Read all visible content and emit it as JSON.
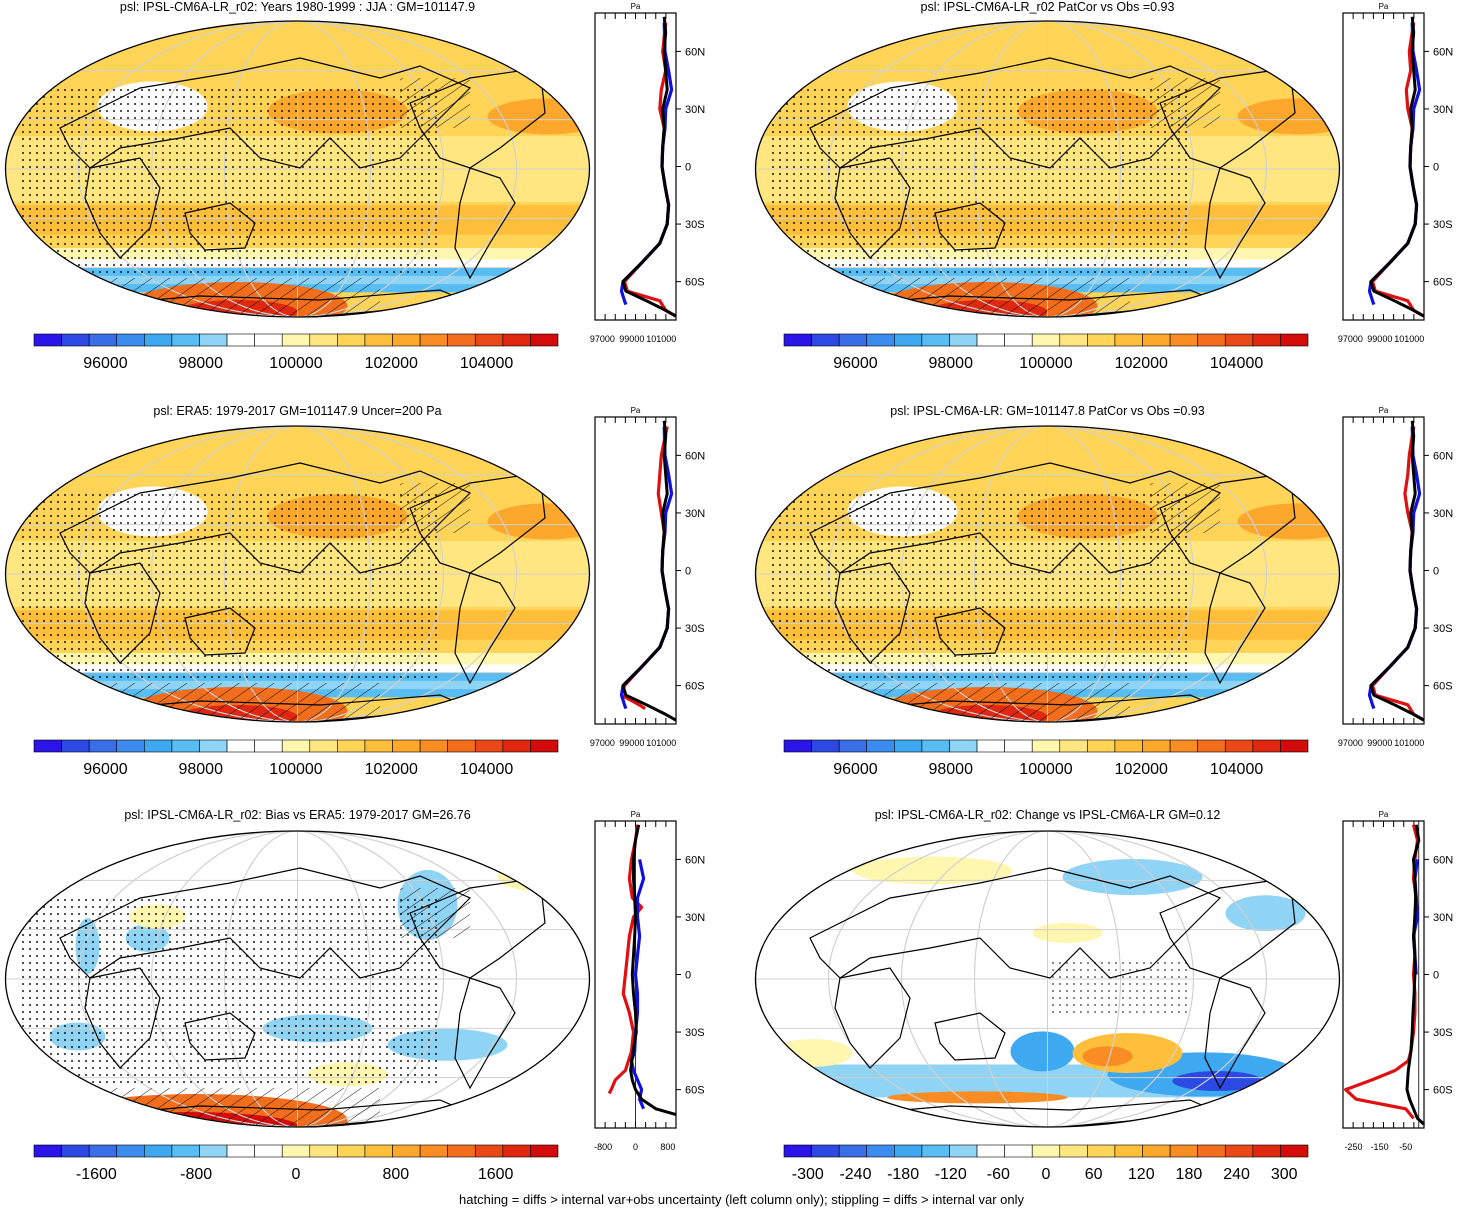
{
  "figure": {
    "variable": "psl",
    "footer": "hatching = diffs > internal var+obs uncertainty (left column only); stippling = diffs > internal var only"
  },
  "colors": {
    "scale": [
      "#2a14e8",
      "#2d49e3",
      "#3a6ee6",
      "#3c8cef",
      "#3ea8f0",
      "#58bdf3",
      "#8fd3f5",
      "#ffffff",
      "#ffffff",
      "#fff6b0",
      "#ffe680",
      "#ffd457",
      "#ffbf3a",
      "#fda72d",
      "#f98d23",
      "#f26e1c",
      "#e84916",
      "#e02810",
      "#d40b0b"
    ],
    "model_line": "#e01010",
    "obs_line": "#1010e0",
    "mean_line": "#000000",
    "coast": "#000000",
    "grid": "#d0d0d0"
  },
  "chart_data": [
    {
      "type": "heatmap",
      "id": "panel-model-r02",
      "title": "psl: IPSL-CM6A-LR_r02: Years 1980-1999 : JJA : GM=101147.9",
      "colorbar_ticks": [
        "96000",
        "98000",
        "100000",
        "102000",
        "104000"
      ],
      "colorbar_range": [
        94500,
        105500
      ],
      "profile": {
        "units": "Pa",
        "x_ticks": [
          "97000",
          "99000",
          "101000"
        ],
        "x_range": [
          96500,
          102000
        ],
        "lat_ticks": [
          "60N",
          "30N",
          "0",
          "30S",
          "60S"
        ],
        "series": [
          {
            "name": "model",
            "lat": [
              75,
              60,
              50,
              40,
              30,
              20,
              10,
              0,
              -10,
              -20,
              -30,
              -40,
              -50,
              -60,
              -65,
              -70,
              -75,
              -78
            ],
            "values": [
              101300,
              101100,
              101300,
              101000,
              100900,
              101200,
              101100,
              101050,
              101250,
              101500,
              101400,
              100900,
              99700,
              98500,
              98700,
              100900,
              101300,
              102000
            ]
          },
          {
            "name": "obs",
            "lat": [
              75,
              60,
              50,
              40,
              30,
              20,
              10,
              0,
              -10,
              -20,
              -30,
              -40,
              -50,
              -60,
              -65,
              -70,
              -72
            ],
            "values": [
              101200,
              101250,
              101500,
              101700,
              101300,
              101250,
              101100,
              101050,
              101250,
              101500,
              101400,
              100900,
              99700,
              98400,
              98300,
              98500,
              98600
            ]
          },
          {
            "name": "mean",
            "lat": [
              78,
              70,
              60,
              50,
              40,
              30,
              20,
              10,
              0,
              -10,
              -20,
              -30,
              -40,
              -50,
              -60,
              -65,
              -70,
              -75,
              -78
            ],
            "values": [
              101200,
              101300,
              101200,
              101300,
              101400,
              101100,
              101200,
              101100,
              101050,
              101250,
              101500,
              101400,
              100900,
              99700,
              98400,
              98600,
              100000,
              101300,
              102000
            ]
          }
        ]
      }
    },
    {
      "type": "heatmap",
      "id": "panel-model-patcor",
      "title": "psl: IPSL-CM6A-LR_r02 PatCor vs Obs =0.93",
      "colorbar_ticks": [
        "96000",
        "98000",
        "100000",
        "102000",
        "104000"
      ],
      "colorbar_range": [
        94500,
        105500
      ],
      "profile": {
        "units": "Pa",
        "x_ticks": [
          "97000",
          "99000",
          "101000"
        ],
        "x_range": [
          96500,
          102000
        ],
        "lat_ticks": [
          "60N",
          "30N",
          "0",
          "30S",
          "60S"
        ],
        "series": [
          {
            "name": "model",
            "lat": [
              75,
              60,
              50,
              40,
              30,
              20,
              10,
              0,
              -10,
              -20,
              -30,
              -40,
              -50,
              -60,
              -65,
              -70,
              -75,
              -78
            ],
            "values": [
              101300,
              101000,
              101100,
              100800,
              100900,
              101200,
              101100,
              101050,
              101250,
              101500,
              101400,
              100900,
              99700,
              98500,
              98700,
              100900,
              101300,
              102000
            ]
          },
          {
            "name": "obs",
            "lat": [
              75,
              60,
              50,
              40,
              30,
              20,
              10,
              0,
              -10,
              -20,
              -30,
              -40,
              -50,
              -60,
              -65,
              -70,
              -72
            ],
            "values": [
              101200,
              101250,
              101500,
              101700,
              101300,
              101250,
              101100,
              101050,
              101250,
              101500,
              101400,
              100900,
              99700,
              98400,
              98300,
              98500,
              98600
            ]
          },
          {
            "name": "mean",
            "lat": [
              78,
              70,
              60,
              50,
              40,
              30,
              20,
              10,
              0,
              -10,
              -20,
              -30,
              -40,
              -50,
              -60,
              -65,
              -70,
              -75,
              -78
            ],
            "values": [
              101200,
              101300,
              101200,
              101300,
              101400,
              101100,
              101200,
              101100,
              101050,
              101250,
              101500,
              101400,
              100900,
              99700,
              98400,
              98600,
              100000,
              101300,
              102000
            ]
          }
        ]
      }
    },
    {
      "type": "heatmap",
      "id": "panel-era5",
      "title": "psl: ERA5: 1979-2017 GM=101147.9 Uncer=200 Pa",
      "colorbar_ticks": [
        "96000",
        "98000",
        "100000",
        "102000",
        "104000"
      ],
      "colorbar_range": [
        94500,
        105500
      ],
      "profile": {
        "units": "Pa",
        "x_ticks": [
          "97000",
          "99000",
          "101000"
        ],
        "x_range": [
          96500,
          102000
        ],
        "lat_ticks": [
          "60N",
          "30N",
          "0",
          "30S",
          "60S"
        ],
        "series": [
          {
            "name": "model",
            "lat": [
              75,
              60,
              50,
              40,
              30,
              20,
              10,
              0,
              -10,
              -20,
              -30,
              -40,
              -50,
              -60,
              -65,
              -70,
              -72
            ],
            "values": [
              101400,
              101000,
              100900,
              100800,
              101000,
              101200,
              101100,
              101050,
              101250,
              101500,
              101400,
              100900,
              99700,
              98500,
              98300,
              99500,
              99900
            ]
          },
          {
            "name": "obs",
            "lat": [
              75,
              60,
              50,
              40,
              30,
              20,
              10,
              0,
              -10,
              -20,
              -30,
              -40,
              -50,
              -60,
              -65,
              -70,
              -72
            ],
            "values": [
              101200,
              101250,
              101500,
              101700,
              101300,
              101250,
              101100,
              101050,
              101250,
              101500,
              101400,
              100900,
              99700,
              98400,
              98300,
              98500,
              98600
            ]
          },
          {
            "name": "mean",
            "lat": [
              78,
              70,
              60,
              50,
              40,
              30,
              20,
              10,
              0,
              -10,
              -20,
              -30,
              -40,
              -50,
              -60,
              -65,
              -70,
              -75,
              -78
            ],
            "values": [
              101200,
              101300,
              101200,
              101300,
              101400,
              101100,
              101200,
              101100,
              101050,
              101250,
              101500,
              101400,
              100900,
              99700,
              98400,
              98600,
              100000,
              101300,
              102000
            ]
          }
        ]
      }
    },
    {
      "type": "heatmap",
      "id": "panel-model-gm",
      "title": "psl: IPSL-CM6A-LR: GM=101147.8 PatCor vs Obs =0.93",
      "colorbar_ticks": [
        "96000",
        "98000",
        "100000",
        "102000",
        "104000"
      ],
      "colorbar_range": [
        94500,
        105500
      ],
      "profile": {
        "units": "Pa",
        "x_ticks": [
          "97000",
          "99000",
          "101000"
        ],
        "x_range": [
          96500,
          102000
        ],
        "lat_ticks": [
          "60N",
          "30N",
          "0",
          "30S",
          "60S"
        ],
        "series": [
          {
            "name": "model",
            "lat": [
              75,
              60,
              50,
              40,
              30,
              20,
              10,
              0,
              -10,
              -20,
              -30,
              -40,
              -50,
              -60,
              -65,
              -70,
              -75,
              -78
            ],
            "values": [
              101300,
              101000,
              100900,
              100700,
              100900,
              101200,
              101100,
              101050,
              101250,
              101500,
              101400,
              100900,
              99700,
              98500,
              98700,
              100900,
              101300,
              102000
            ]
          },
          {
            "name": "obs",
            "lat": [
              75,
              60,
              50,
              40,
              30,
              20,
              10,
              0,
              -10,
              -20,
              -30,
              -40,
              -50,
              -60,
              -65,
              -70,
              -72
            ],
            "values": [
              101200,
              101250,
              101500,
              101700,
              101300,
              101250,
              101100,
              101050,
              101250,
              101500,
              101400,
              100900,
              99700,
              98400,
              98300,
              98500,
              98600
            ]
          },
          {
            "name": "mean",
            "lat": [
              78,
              70,
              60,
              50,
              40,
              30,
              20,
              10,
              0,
              -10,
              -20,
              -30,
              -40,
              -50,
              -60,
              -65,
              -70,
              -75,
              -78
            ],
            "values": [
              101200,
              101300,
              101200,
              101300,
              101400,
              101100,
              101200,
              101100,
              101050,
              101250,
              101500,
              101400,
              100900,
              99700,
              98400,
              98600,
              100000,
              101300,
              102000
            ]
          }
        ]
      }
    },
    {
      "type": "heatmap",
      "id": "panel-bias",
      "title": "psl: IPSL-CM6A-LR_r02: Bias vs ERA5: 1979-2017 GM=26.76",
      "colorbar_ticks": [
        "-1600",
        "-800",
        "0",
        "800",
        "1600"
      ],
      "colorbar_range": [
        -2100,
        2100
      ],
      "profile": {
        "units": "Pa",
        "x_ticks": [
          "-800",
          "0",
          "800"
        ],
        "x_range": [
          -1000,
          1000
        ],
        "lat_ticks": [
          "60N",
          "30N",
          "0",
          "30S",
          "60S"
        ],
        "series": [
          {
            "name": "model",
            "lat": [
              78,
              70,
              60,
              50,
              40,
              35,
              30,
              20,
              10,
              0,
              -10,
              -20,
              -30,
              -40,
              -50,
              -55,
              -60,
              -62
            ],
            "values": [
              50,
              0,
              -100,
              -150,
              -80,
              150,
              -50,
              -150,
              -200,
              -250,
              -300,
              -150,
              -50,
              -100,
              -250,
              -500,
              -600,
              -650
            ]
          },
          {
            "name": "obs",
            "lat": [
              60,
              50,
              40,
              30,
              20,
              10,
              0,
              -10,
              -20,
              -30,
              -40,
              -45,
              -50,
              -60,
              -65,
              -70
            ],
            "values": [
              100,
              200,
              50,
              50,
              100,
              50,
              0,
              50,
              50,
              0,
              -20,
              -100,
              -50,
              150,
              100,
              200
            ]
          },
          {
            "name": "mean",
            "lat": [
              78,
              70,
              60,
              50,
              40,
              30,
              20,
              10,
              0,
              -10,
              -20,
              -30,
              -40,
              -50,
              -55,
              -60,
              -65,
              -70,
              -73
            ],
            "values": [
              80,
              0,
              -50,
              -50,
              -20,
              0,
              -20,
              -50,
              -80,
              -50,
              0,
              20,
              -60,
              -120,
              -80,
              0,
              150,
              500,
              1000
            ]
          }
        ]
      }
    },
    {
      "type": "heatmap",
      "id": "panel-change",
      "title": "psl: IPSL-CM6A-LR_r02: Change vs IPSL-CM6A-LR GM=0.12",
      "colorbar_ticks": [
        "-300",
        "-240",
        "-180",
        "-120",
        "-60",
        "0",
        "60",
        "120",
        "180",
        "240",
        "300"
      ],
      "colorbar_range": [
        -330,
        330
      ],
      "profile": {
        "units": "Pa",
        "x_ticks": [
          "-250",
          "-150",
          "-50"
        ],
        "x_range": [
          -290,
          20
        ],
        "lat_ticks": [
          "60N",
          "30N",
          "0",
          "30S",
          "60S"
        ],
        "series": [
          {
            "name": "model",
            "lat": [
              78,
              70,
              60,
              50,
              40,
              30,
              20,
              10,
              0,
              -10,
              -20,
              -30,
              -40,
              -45,
              -50,
              -55,
              -60,
              -65,
              -70,
              -75
            ],
            "values": [
              -20,
              -5,
              -15,
              -20,
              -10,
              -15,
              -18,
              -15,
              -20,
              -15,
              -15,
              -20,
              -30,
              -40,
              -90,
              -180,
              -280,
              -240,
              -50,
              -20
            ]
          },
          {
            "name": "obs",
            "lat": [
              60,
              50,
              40,
              30,
              20,
              10,
              0
            ],
            "values": [
              -5,
              -15,
              -10,
              -5,
              -20,
              -15,
              -10
            ]
          },
          {
            "name": "mean",
            "lat": [
              78,
              70,
              60,
              50,
              40,
              30,
              20,
              10,
              0,
              -10,
              -20,
              -30,
              -40,
              -50,
              -60,
              -65,
              -70,
              -75,
              -78
            ],
            "values": [
              -10,
              0,
              -20,
              -15,
              -12,
              -15,
              -20,
              -15,
              -15,
              -18,
              -22,
              -25,
              -30,
              -40,
              -45,
              -35,
              -20,
              -5,
              20
            ]
          }
        ]
      }
    }
  ]
}
